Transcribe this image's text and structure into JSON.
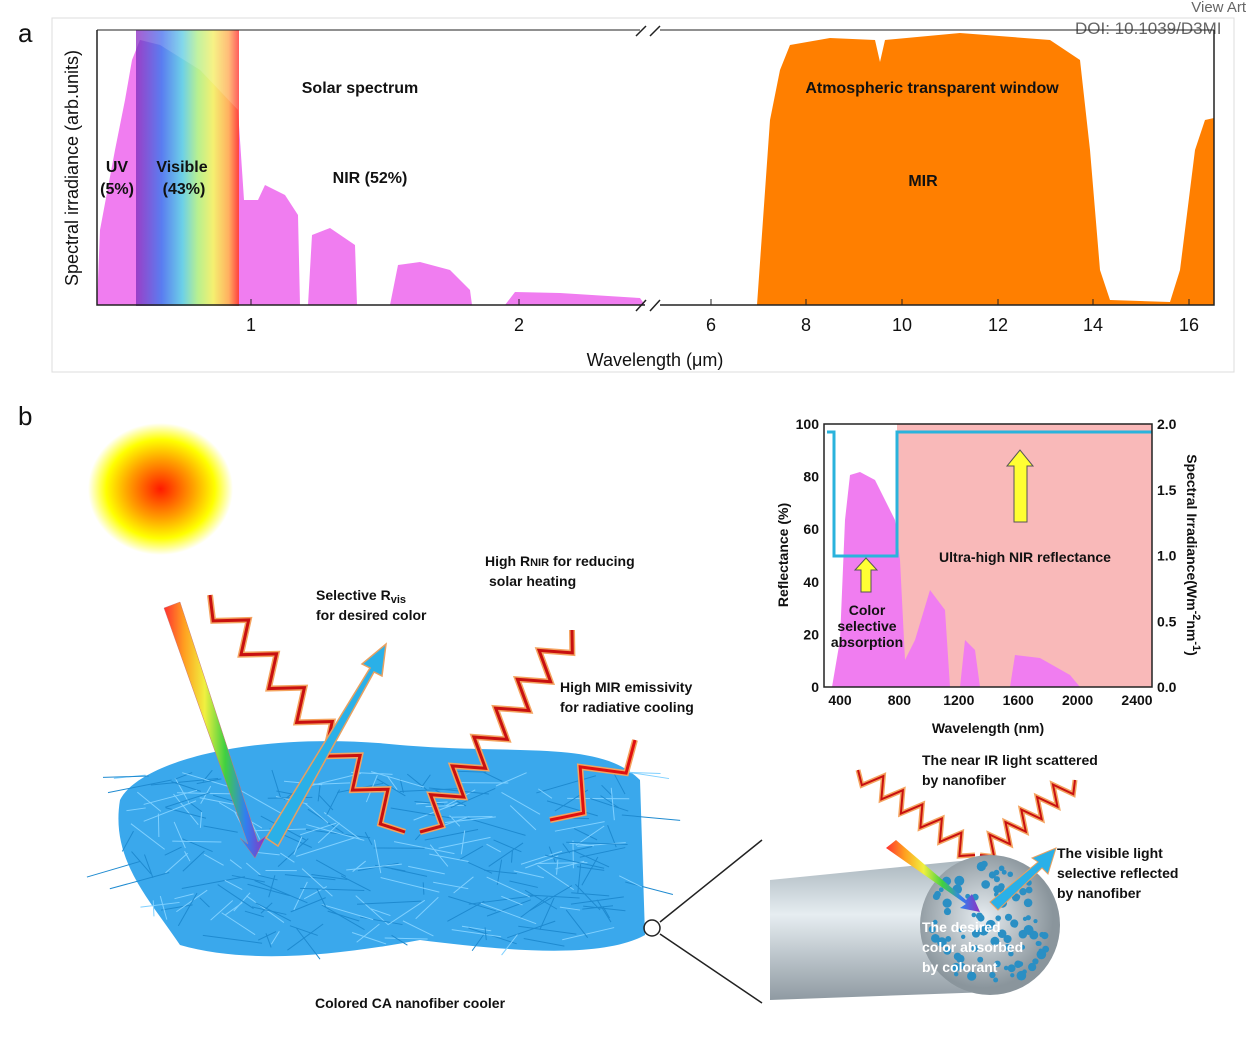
{
  "labels": {
    "a": "a",
    "b": "b"
  },
  "header": {
    "view": "View Art",
    "doi": "DOI: 10.1039/D3MI"
  },
  "panel_a": {
    "y_label": "Spectral irradiance (arb.units)",
    "x_label": "Wavelength (μm)",
    "x_ticks": [
      1,
      2,
      6,
      8,
      10,
      12,
      14,
      16
    ],
    "annotations": {
      "solar": "Solar spectrum",
      "uv": "UV",
      "uv_pct": "(5%)",
      "visible": "Visible",
      "visible_pct": "(43%)",
      "nir": "NIR (52%)",
      "window": "Atmospheric transparent window",
      "mir": "MIR"
    }
  },
  "panel_b": {
    "selective": [
      "Selective R",
      "vis",
      "for desired color"
    ],
    "high_r": [
      "High R",
      "NIR",
      " for reducing",
      "solar heating"
    ],
    "mir": [
      "High MIR emissivity",
      "for radiative cooling"
    ],
    "caption": "Colored CA nanofiber cooler",
    "scattered": [
      "The near IR light scattered",
      "by nanofiber"
    ],
    "reflected": [
      "The visible light",
      "selective reflected",
      "by nanofiber"
    ],
    "absorbed": [
      "The desired",
      "color absorbed",
      "by colorant"
    ],
    "inset": {
      "y_label": "Reflectance (%)",
      "y2_label": [
        "Spectral Irradiance(Wm",
        "-2",
        "nm",
        "-1",
        ")"
      ],
      "x_label": "Wavelength (nm)",
      "yticks": [
        0,
        20,
        40,
        60,
        80,
        100
      ],
      "y2ticks": [
        "0.0",
        "0.5",
        "1.0",
        "1.5",
        "2.0"
      ],
      "xticks": [
        400,
        800,
        1200,
        1600,
        2000,
        2400
      ],
      "nir_note": "Ultra-high NIR reflectance",
      "absorption": [
        "Color",
        "selective",
        "absorption"
      ]
    }
  }
}
